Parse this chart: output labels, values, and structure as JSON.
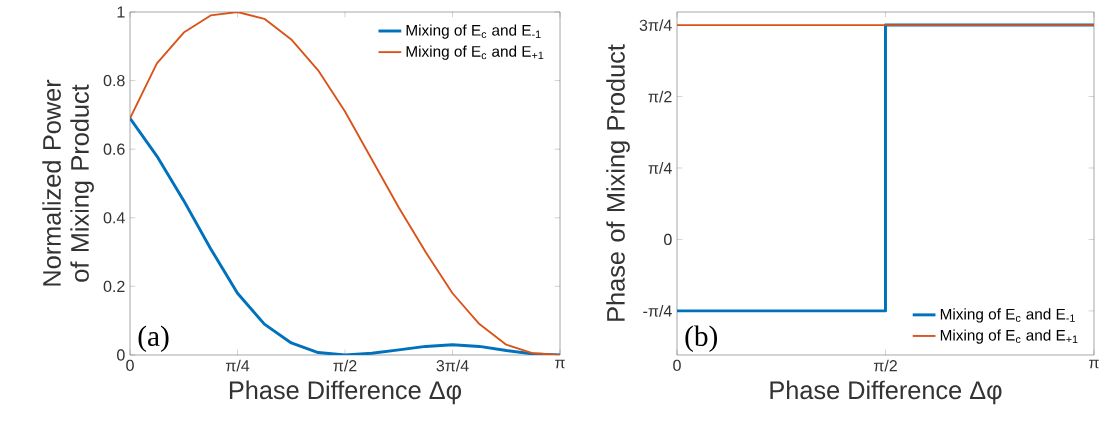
{
  "chart_data": [
    {
      "type": "line",
      "xlabel": "Phase Difference Δφ",
      "ylabel": "Normalized Power of Mixing Product",
      "xlim": [
        0,
        3.1416
      ],
      "ylim": [
        0,
        1
      ],
      "xticks": [
        0,
        {
          "value": 0.7854,
          "label": "π/4"
        },
        {
          "value": 1.5708,
          "label": "π/2"
        },
        {
          "value": 2.3562,
          "label": "3π/4"
        },
        {
          "value": 3.1416,
          "label": "π"
        }
      ],
      "yticks": [
        0,
        0.2,
        0.4,
        0.6,
        0.8,
        1
      ],
      "legend": "top right",
      "annotations": [
        "(a)"
      ],
      "series": [
        {
          "name": "Mixing of E$_{c}$ and E$_{-1}$",
          "color": "#0072bd",
          "x": [
            0,
            0.1963,
            0.3927,
            0.589,
            0.7854,
            0.9817,
            1.1781,
            1.3744,
            1.5708,
            1.7671,
            1.9635,
            2.1598,
            2.3562,
            2.5525,
            2.7489,
            2.9452,
            3.1416
          ],
          "values": [
            0.69,
            0.58,
            0.45,
            0.31,
            0.18,
            0.09,
            0.035,
            0.007,
            0,
            0.005,
            0.015,
            0.025,
            0.03,
            0.025,
            0.013,
            0.003,
            0
          ]
        },
        {
          "name": "Mixing of E$_{c}$ and E$_{+1}$",
          "color": "#d95319",
          "x": [
            0,
            0.1963,
            0.3927,
            0.589,
            0.7854,
            0.9817,
            1.1781,
            1.3744,
            1.5708,
            1.7671,
            1.9635,
            2.1598,
            2.3562,
            2.5525,
            2.7489,
            2.9452,
            3.1416
          ],
          "values": [
            0.69,
            0.85,
            0.94,
            0.99,
            1,
            0.98,
            0.92,
            0.83,
            0.71,
            0.57,
            0.43,
            0.3,
            0.18,
            0.09,
            0.03,
            0.005,
            0
          ]
        }
      ]
    },
    {
      "type": "line",
      "xlabel": "Phase Difference Δφ",
      "ylabel": "Phase of Mixing Product",
      "xlim": [
        0,
        3.1416
      ],
      "ylim": [
        -1.27,
        2.5
      ],
      "xticks": [
        0,
        {
          "value": 1.5708,
          "label": "π/2"
        },
        {
          "value": 3.1416,
          "label": "π"
        }
      ],
      "yticks": [
        {
          "value": -0.7854,
          "label": "-π/4"
        },
        0,
        {
          "value": 0.7854,
          "label": "π/4"
        },
        {
          "value": 1.5708,
          "label": "π/2"
        },
        {
          "value": 2.3562,
          "label": "3π/4"
        }
      ],
      "legend": "bottom right",
      "annotations": [
        "(b)"
      ],
      "series": [
        {
          "name": "Mixing of E$_{c}$ and E$_{-1}$",
          "color": "#0072bd",
          "x": [
            0,
            1.5708,
            1.5708,
            3.1416
          ],
          "values": [
            -0.7854,
            -0.7854,
            2.3562,
            2.3562
          ]
        },
        {
          "name": "Mixing of E$_{c}$ and E$_{+1}$",
          "color": "#d95319",
          "x": [
            0,
            3.1416
          ],
          "values": [
            2.3562,
            2.3562
          ]
        }
      ]
    }
  ]
}
